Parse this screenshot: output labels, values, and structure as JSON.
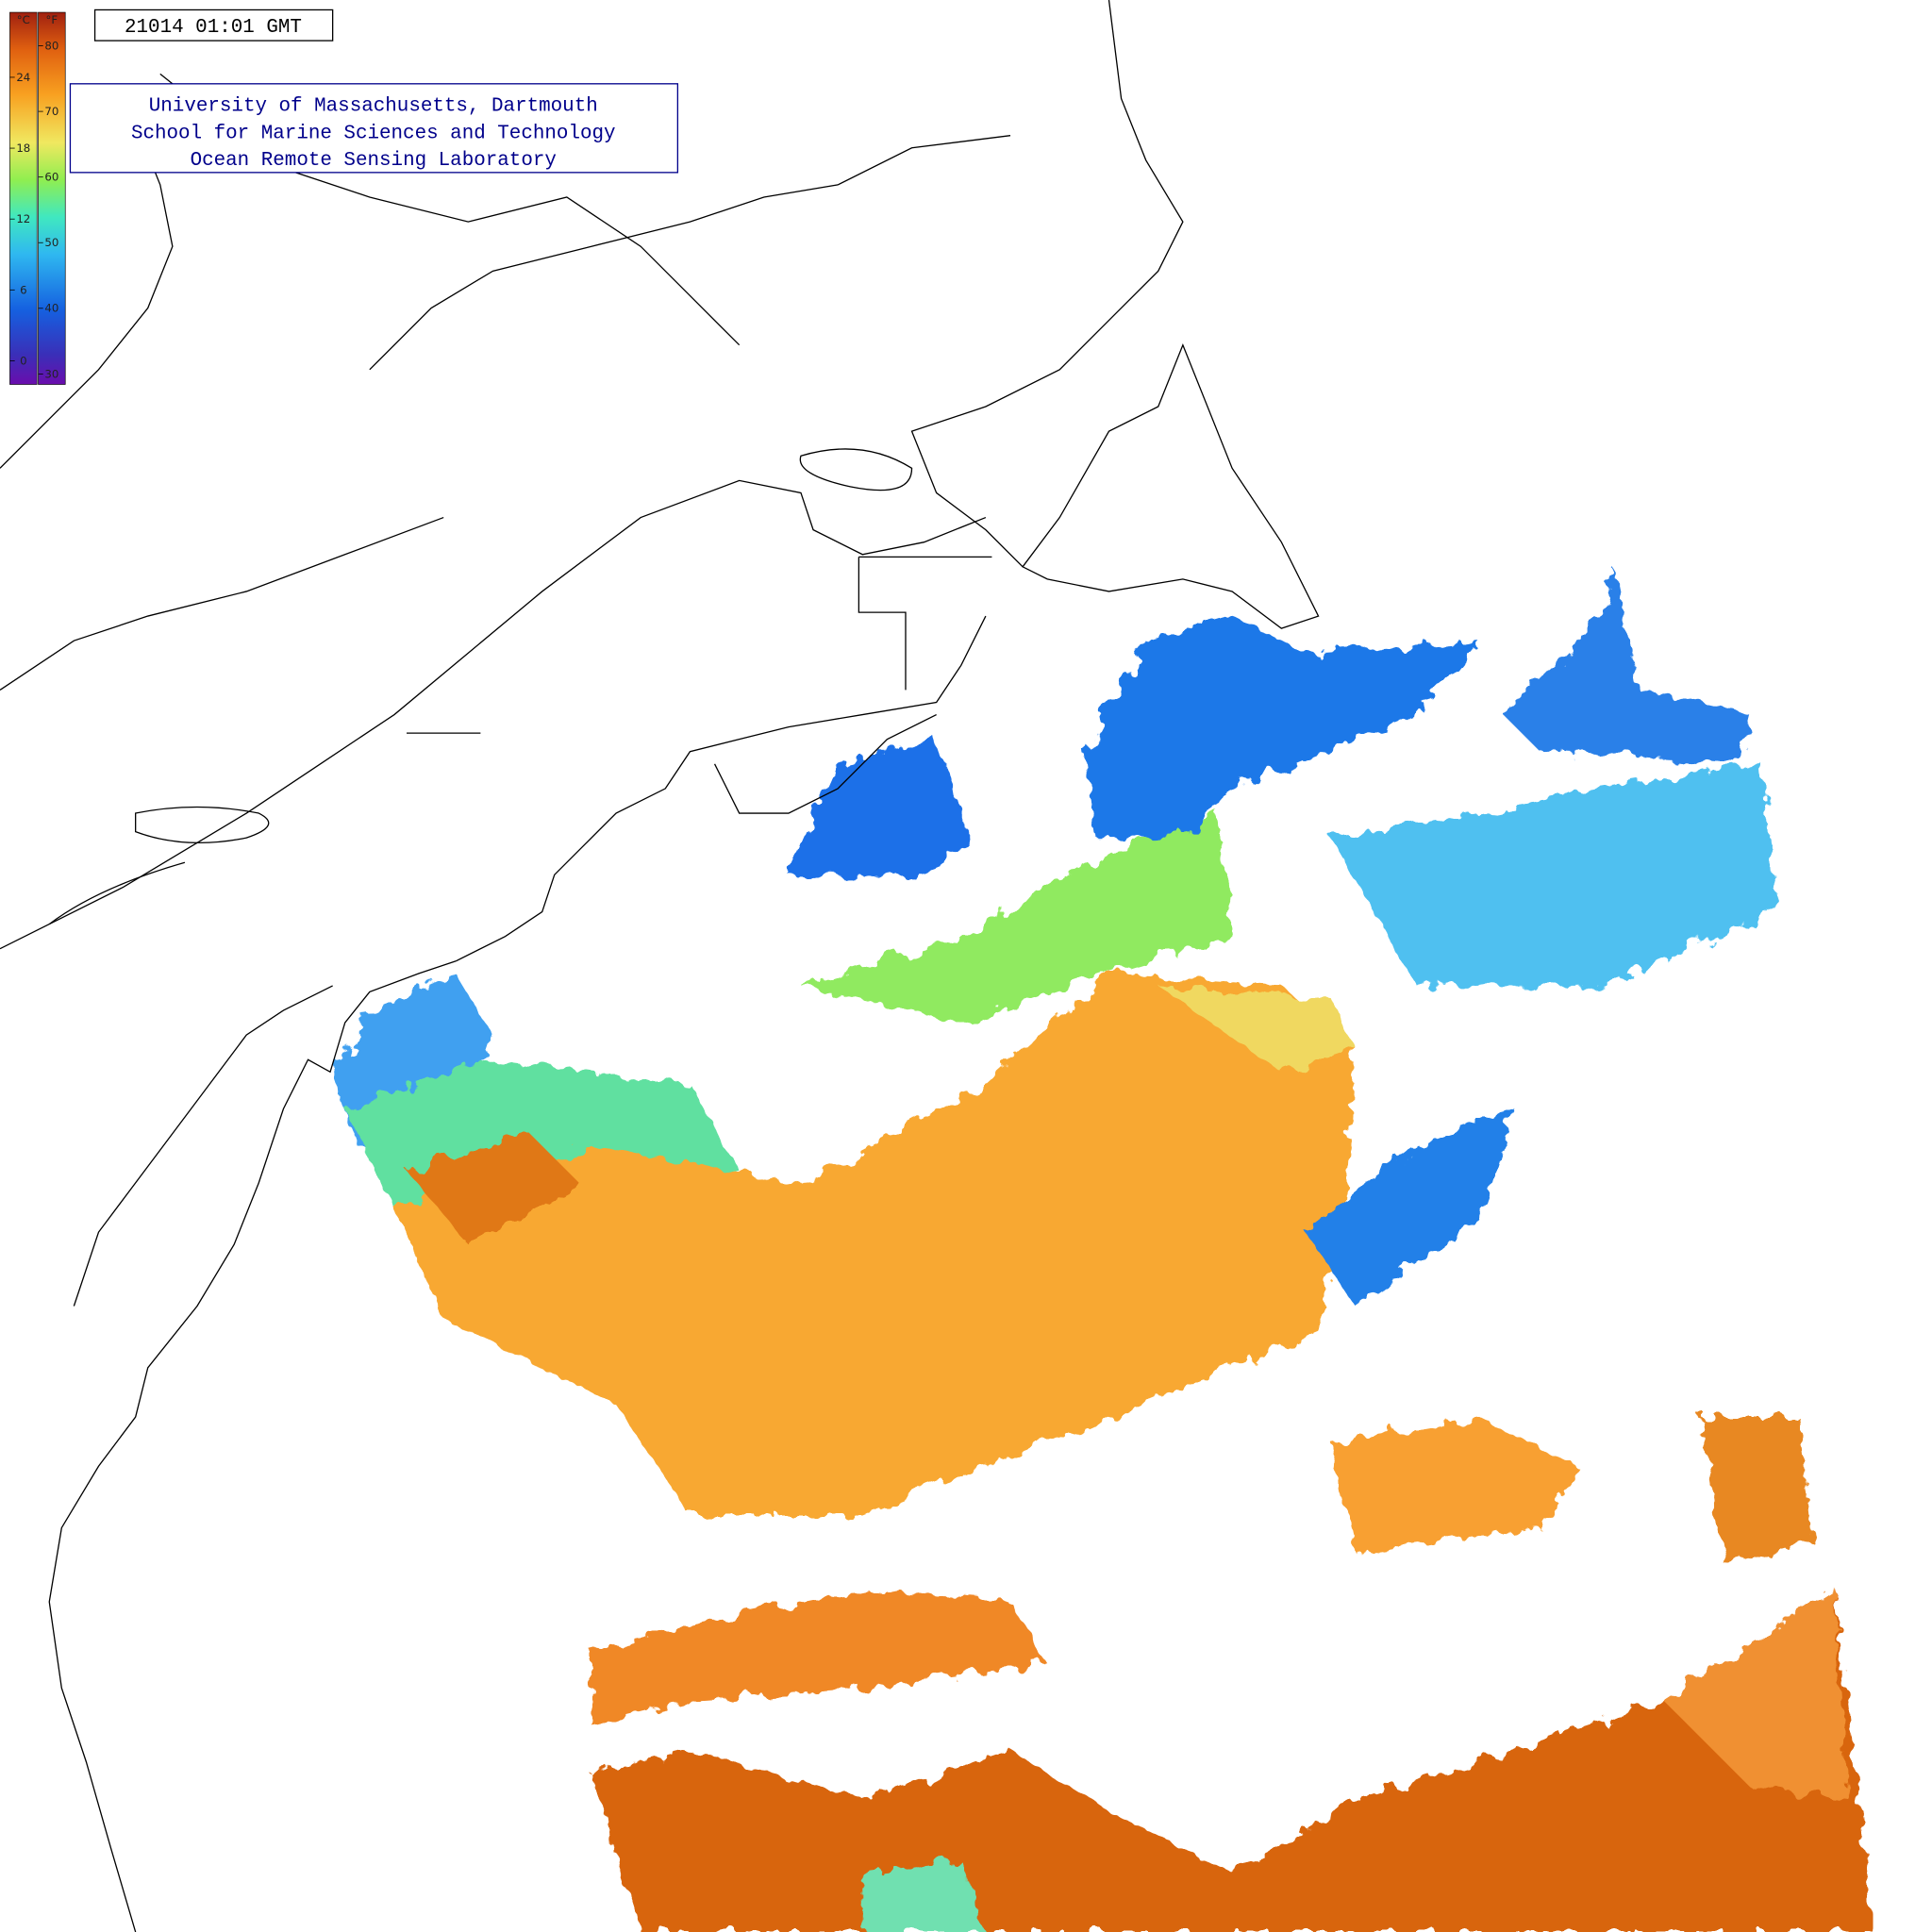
{
  "timestamp": "21014 01:01 GMT",
  "title": {
    "lines": [
      "University of Massachusetts, Dartmouth",
      "School for Marine Sciences and Technology",
      "Ocean Remote Sensing Laboratory"
    ]
  },
  "colorbar": {
    "celsius": {
      "unit": "°C",
      "lim": [
        -2,
        29.5
      ],
      "ticks": [
        0,
        6,
        12,
        18,
        24
      ]
    },
    "fahrenheit": {
      "unit": "°F",
      "lim": [
        28.4,
        85.1
      ],
      "ticks": [
        30,
        40,
        50,
        60,
        70,
        80
      ]
    }
  }
}
